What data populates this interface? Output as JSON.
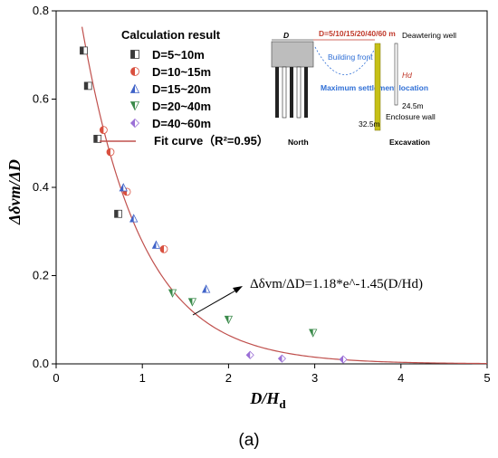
{
  "chart_data": {
    "type": "scatter",
    "x_axis": {
      "min": 0,
      "max": 5,
      "ticks": [
        0,
        1,
        2,
        3,
        4,
        5
      ],
      "title_main": "D/H",
      "title_sub": "d"
    },
    "y_axis": {
      "min": 0,
      "max": 0.8,
      "ticks": [
        0.0,
        0.2,
        0.4,
        0.6,
        0.8
      ],
      "title": "Δδvm/ΔD"
    },
    "legend": {
      "title": "Calculation result",
      "placement": "top-left",
      "fit_label": "Fit curve（R²=0.95）"
    },
    "series": [
      {
        "name": "D=5~10m",
        "marker": "half-square",
        "color": "#3a3a3a",
        "points": [
          [
            0.32,
            0.71
          ],
          [
            0.37,
            0.63
          ],
          [
            0.48,
            0.51
          ],
          [
            0.72,
            0.34
          ]
        ]
      },
      {
        "name": "D=10~15m",
        "marker": "half-circle",
        "color": "#d9503f",
        "points": [
          [
            0.55,
            0.53
          ],
          [
            0.63,
            0.48
          ],
          [
            0.82,
            0.39
          ],
          [
            1.25,
            0.26
          ]
        ]
      },
      {
        "name": "D=15~20m",
        "marker": "half-triangle-up",
        "color": "#3f62c8",
        "points": [
          [
            0.78,
            0.4
          ],
          [
            0.9,
            0.33
          ],
          [
            1.16,
            0.27
          ],
          [
            1.74,
            0.17
          ]
        ]
      },
      {
        "name": "D=20~40m",
        "marker": "half-triangle-down",
        "color": "#3a8a4a",
        "points": [
          [
            1.35,
            0.16
          ],
          [
            1.58,
            0.14
          ],
          [
            2.0,
            0.1
          ],
          [
            2.98,
            0.07
          ]
        ]
      },
      {
        "name": "D=40~60m",
        "marker": "half-diamond",
        "color": "#9b6fd6",
        "points": [
          [
            2.25,
            0.02
          ],
          [
            2.62,
            0.012
          ],
          [
            3.33,
            0.01
          ]
        ]
      }
    ],
    "fit": {
      "a": 1.18,
      "b": 1.45,
      "x_range": [
        0.3,
        5
      ],
      "color": "#c0504d"
    },
    "annotation": {
      "text": "Δδvm/ΔD=1.18*e^-1.45(D/Hd)",
      "arrow_tail": [
        1.6,
        0.12
      ],
      "arrow_head": [
        2.2,
        0.18
      ]
    }
  },
  "inset": {
    "label_D": "D",
    "label_distances": "D=5/10/15/20/40/60 m",
    "label_dewatering": "Deawtering well",
    "label_building_front": "Building front",
    "label_max_settlement": "Maximum settlement location",
    "label_Hd": "Hd",
    "label_24_5": "24.5m",
    "label_32_5": "32.5m",
    "label_enclosure": "Enclosure wall",
    "label_north": "North",
    "label_excavation": "Excavation"
  },
  "panel_label": "(a)"
}
